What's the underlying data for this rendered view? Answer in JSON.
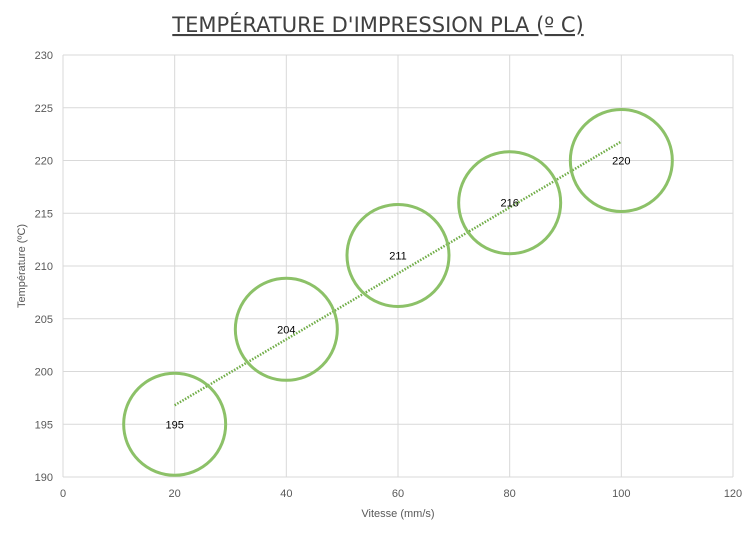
{
  "colors": {
    "marker": "#8cc168",
    "trendline": "#70ad47",
    "grid": "#d9d9d9",
    "tick_text": "#595959",
    "title_text": "#404040"
  },
  "chart_data": {
    "type": "scatter",
    "title": "TEMPÉRATURE D'IMPRESSION PLA (º C)",
    "xlabel": "Vitesse (mm/s)",
    "ylabel": "Température (ºC)",
    "xlim": [
      0,
      120
    ],
    "ylim": [
      190,
      230
    ],
    "x_ticks": [
      0,
      20,
      40,
      60,
      80,
      100,
      120
    ],
    "y_ticks": [
      190,
      195,
      200,
      205,
      210,
      215,
      220,
      225,
      230
    ],
    "grid": true,
    "legend": "none",
    "marker": "large hollow circle",
    "series": [
      {
        "x": [
          20,
          40,
          60,
          80,
          100
        ],
        "y": [
          195,
          204,
          211,
          216,
          220
        ],
        "labels": [
          "195",
          "204",
          "211",
          "216",
          "220"
        ]
      }
    ],
    "trendline": {
      "type": "linear",
      "style": "dotted",
      "x": [
        20,
        100
      ],
      "y": [
        196.8,
        221.8
      ]
    }
  }
}
